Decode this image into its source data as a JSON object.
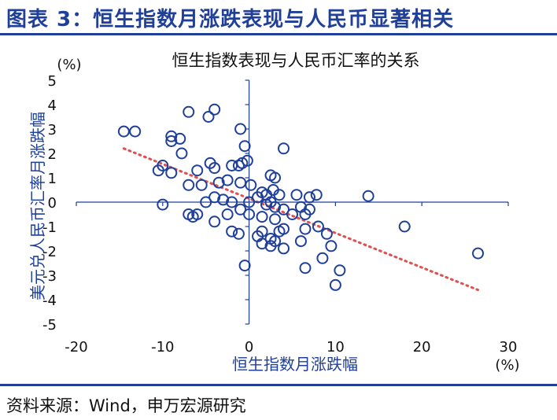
{
  "figure_title": "图表 3：恒生指数月涨跌表现与人民币显著相关",
  "source_note": "资料来源：Wind，申万宏源研究",
  "colors": {
    "brand": "#1f3f99",
    "marker": "#1f3f99",
    "trendline": "#e05050",
    "axis": "#1f3f99"
  },
  "chart_data": {
    "type": "scatter",
    "title": "恒生指数表现与人民币汇率的关系",
    "xlabel": "恒生指数月涨跌幅",
    "ylabel": "美元兑人民币汇率月涨跌幅",
    "x_unit": "(%)",
    "y_unit": "(%)",
    "xlim": [
      -20,
      30
    ],
    "ylim": [
      -5,
      5
    ],
    "x_ticks": [
      -20,
      -10,
      0,
      10,
      20,
      30
    ],
    "y_ticks": [
      5,
      4,
      3,
      2,
      1,
      0,
      -1,
      -2,
      -3,
      -4,
      -5
    ],
    "x_tick_labels": [
      "-20",
      "-10",
      "0",
      "10",
      "20",
      "30"
    ],
    "y_tick_labels": [
      "5",
      "4",
      "3",
      "2",
      "1",
      "0",
      "-1",
      "-2",
      "-3",
      "-4",
      "-5"
    ],
    "grid": false,
    "trendline": {
      "x": [
        -14.5,
        26.5
      ],
      "y": [
        2.2,
        -3.6
      ]
    },
    "points": [
      [
        -14.5,
        2.9
      ],
      [
        -13.2,
        2.9
      ],
      [
        -7.0,
        3.7
      ],
      [
        -4.0,
        3.8
      ],
      [
        -4.7,
        3.5
      ],
      [
        -1.0,
        3.0
      ],
      [
        -9.0,
        2.7
      ],
      [
        -8.0,
        2.6
      ],
      [
        -9.0,
        2.5
      ],
      [
        -7.8,
        2.0
      ],
      [
        -0.5,
        2.3
      ],
      [
        4.0,
        2.2
      ],
      [
        -10.0,
        1.5
      ],
      [
        -10.5,
        1.3
      ],
      [
        -9.0,
        1.2
      ],
      [
        -6.0,
        1.3
      ],
      [
        -4.5,
        1.6
      ],
      [
        -4.0,
        1.4
      ],
      [
        -2.0,
        1.5
      ],
      [
        -1.2,
        1.5
      ],
      [
        -0.8,
        1.6
      ],
      [
        -0.2,
        1.7
      ],
      [
        2.5,
        1.1
      ],
      [
        3.0,
        1.0
      ],
      [
        -7.0,
        0.7
      ],
      [
        -5.5,
        0.7
      ],
      [
        -3.5,
        0.8
      ],
      [
        -2.5,
        0.9
      ],
      [
        -1.0,
        0.8
      ],
      [
        0.2,
        0.7
      ],
      [
        1.5,
        0.4
      ],
      [
        2.0,
        0.3
      ],
      [
        2.8,
        0.5
      ],
      [
        3.5,
        0.3
      ],
      [
        5.5,
        0.3
      ],
      [
        7.0,
        0.2
      ],
      [
        7.8,
        0.3
      ],
      [
        13.8,
        0.25
      ],
      [
        -10.0,
        -0.1
      ],
      [
        -5.0,
        0.0
      ],
      [
        -4.0,
        0.2
      ],
      [
        -3.0,
        0.1
      ],
      [
        -2.0,
        0.0
      ],
      [
        0.0,
        0.0
      ],
      [
        1.0,
        0.2
      ],
      [
        2.0,
        -0.1
      ],
      [
        2.5,
        0.0
      ],
      [
        3.0,
        -0.2
      ],
      [
        4.0,
        -0.3
      ],
      [
        6.0,
        -0.2
      ],
      [
        7.0,
        -0.3
      ],
      [
        -7.0,
        -0.5
      ],
      [
        -6.5,
        -0.6
      ],
      [
        -6.0,
        -0.5
      ],
      [
        -4.0,
        -0.8
      ],
      [
        -2.5,
        -0.5
      ],
      [
        -1.0,
        -0.3
      ],
      [
        0.0,
        -0.5
      ],
      [
        1.5,
        -0.6
      ],
      [
        3.0,
        -0.7
      ],
      [
        5.0,
        -0.5
      ],
      [
        6.5,
        -0.5
      ],
      [
        8.0,
        -1.0
      ],
      [
        18.0,
        -1.0
      ],
      [
        -2.0,
        -1.2
      ],
      [
        -1.2,
        -1.3
      ],
      [
        1.0,
        -1.4
      ],
      [
        1.5,
        -1.2
      ],
      [
        2.5,
        -1.5
      ],
      [
        3.5,
        -1.2
      ],
      [
        4.0,
        -1.1
      ],
      [
        6.5,
        -1.1
      ],
      [
        9.0,
        -1.3
      ],
      [
        1.5,
        -1.7
      ],
      [
        2.5,
        -1.8
      ],
      [
        3.0,
        -1.6
      ],
      [
        4.0,
        -1.9
      ],
      [
        6.0,
        -1.6
      ],
      [
        9.5,
        -1.8
      ],
      [
        -0.5,
        -2.6
      ],
      [
        6.5,
        -2.7
      ],
      [
        8.5,
        -2.3
      ],
      [
        10.5,
        -2.8
      ],
      [
        10.0,
        -3.4
      ],
      [
        26.5,
        -2.1
      ]
    ]
  }
}
